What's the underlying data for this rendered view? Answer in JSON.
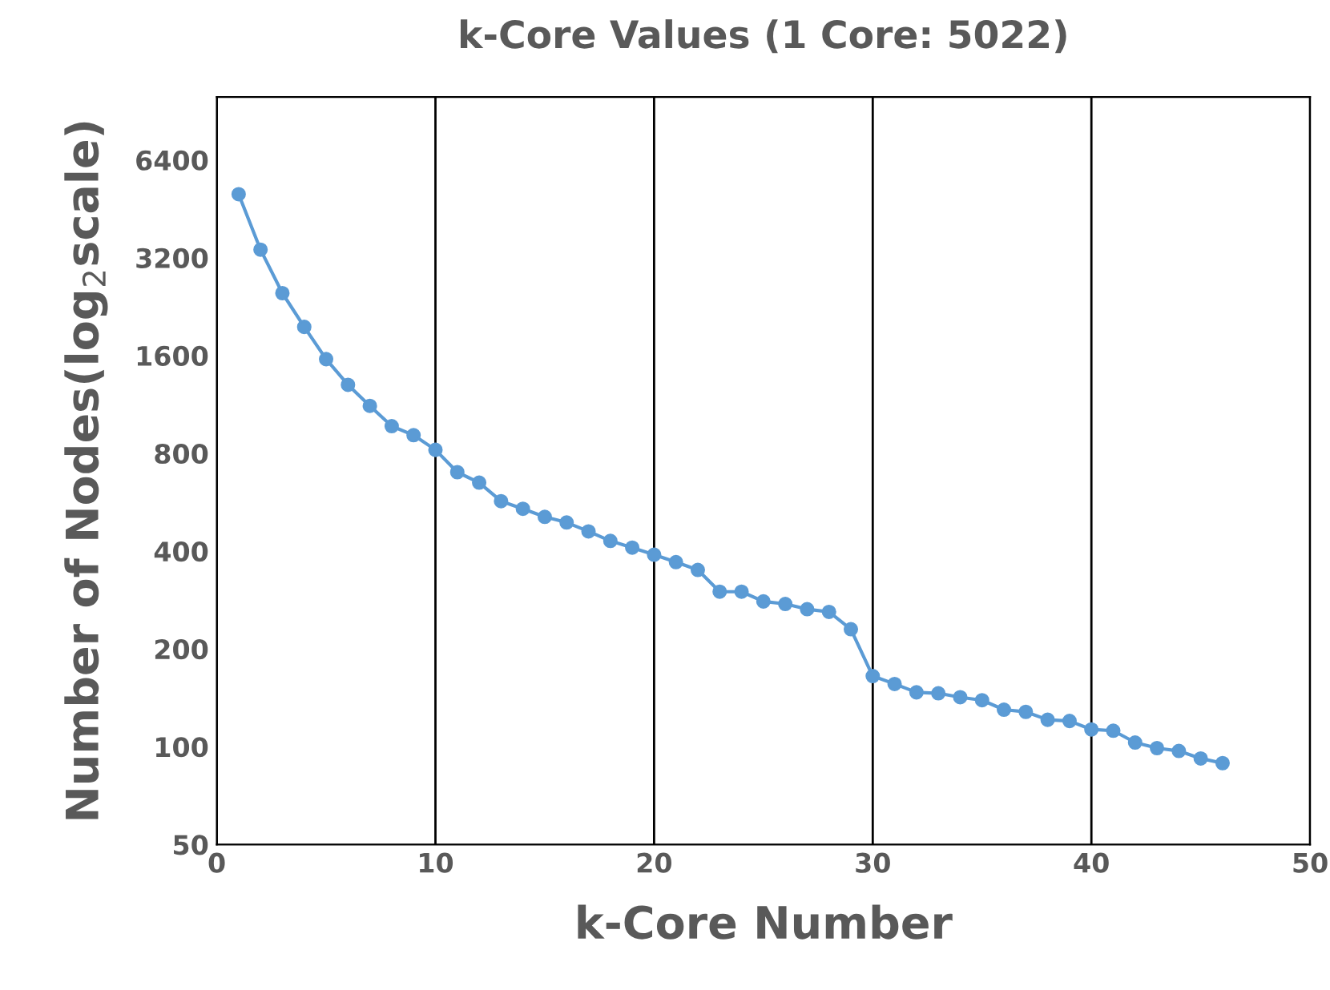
{
  "chart_data": {
    "type": "line",
    "title": "k-Core Values (1 Core: 5022)",
    "xlabel": "k-Core Number",
    "ylabel": "Number of Nodes(log$_{2}$scale)",
    "x": [
      1,
      2,
      3,
      4,
      5,
      6,
      7,
      8,
      9,
      10,
      11,
      12,
      13,
      14,
      15,
      16,
      17,
      18,
      19,
      20,
      21,
      22,
      23,
      24,
      25,
      26,
      27,
      28,
      29,
      30,
      31,
      32,
      33,
      34,
      35,
      36,
      37,
      38,
      39,
      40,
      41,
      42,
      43,
      44,
      45,
      46
    ],
    "series": [
      {
        "color": "#5b9bd5",
        "values": [
          5022,
          3390,
          2490,
          1960,
          1560,
          1300,
          1120,
          970,
          910,
          820,
          700,
          650,
          570,
          540,
          510,
          490,
          460,
          430,
          410,
          390,
          370,
          350,
          300,
          300,
          280,
          275,
          265,
          260,
          230,
          165,
          156,
          147,
          146,
          142,
          139,
          130,
          128,
          121,
          120,
          113,
          112,
          103,
          99,
          97,
          92,
          89
        ]
      }
    ],
    "log": "y",
    "xlim": [
      0,
      50
    ],
    "xticks": [
      0,
      10,
      20,
      30,
      40,
      50
    ],
    "ylim": [
      50,
      10000
    ],
    "yticks": [
      50,
      100,
      200,
      400,
      800,
      1600,
      3200,
      6400
    ],
    "grid": "x",
    "marker": "circle",
    "line_style": "solid"
  }
}
